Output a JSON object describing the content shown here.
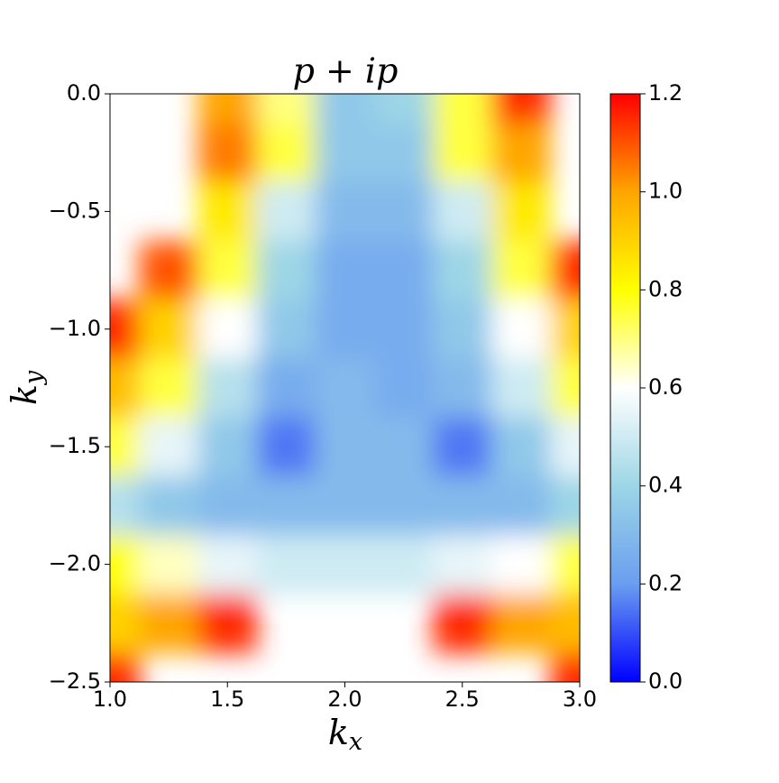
{
  "chart_data": {
    "type": "heatmap",
    "title": {
      "base": "p + ip"
    },
    "xlabel": {
      "base": "k",
      "sub": "x"
    },
    "ylabel": {
      "base": "k",
      "sub": "y"
    },
    "x": [
      1.0,
      1.25,
      1.5,
      1.75,
      2.0,
      2.25,
      2.5,
      2.75,
      3.0
    ],
    "y": [
      0,
      -0.25,
      -0.5,
      -0.75,
      -1.0,
      -1.25,
      -1.5,
      -1.75,
      -2.0,
      -2.25,
      -2.5
    ],
    "z": [
      [
        null,
        null,
        1.0,
        0.7,
        0.35,
        0.4,
        0.75,
        1.15,
        null
      ],
      [
        null,
        null,
        1.05,
        0.75,
        0.35,
        0.35,
        0.75,
        1.0,
        null
      ],
      [
        null,
        null,
        0.85,
        0.5,
        0.3,
        0.3,
        0.5,
        0.85,
        null
      ],
      [
        null,
        1.1,
        0.75,
        0.4,
        0.25,
        0.25,
        0.4,
        0.75,
        1.15
      ],
      [
        1.15,
        0.9,
        0.6,
        0.35,
        0.25,
        0.25,
        0.35,
        0.6,
        0.9
      ],
      [
        0.95,
        0.75,
        0.45,
        0.25,
        0.3,
        0.25,
        0.3,
        0.5,
        0.75
      ],
      [
        0.75,
        0.55,
        0.35,
        0.15,
        0.3,
        0.3,
        0.15,
        0.35,
        0.55
      ],
      [
        0.45,
        0.35,
        0.3,
        0.3,
        0.3,
        0.3,
        0.3,
        0.3,
        0.4
      ],
      [
        0.8,
        0.65,
        0.55,
        0.5,
        0.5,
        0.5,
        0.55,
        0.6,
        0.75
      ],
      [
        0.9,
        1.0,
        1.15,
        null,
        null,
        null,
        1.15,
        1.0,
        0.95
      ],
      [
        1.15,
        null,
        null,
        null,
        null,
        null,
        null,
        null,
        1.15
      ]
    ],
    "xlim": [
      1.0,
      3.0
    ],
    "ylim": [
      -2.5,
      0
    ],
    "xticks": [
      {
        "value": 1.0,
        "label": "1.0"
      },
      1.5,
      {
        "value": 2.0,
        "label": "2.0"
      },
      2.5,
      {
        "value": 3.0,
        "label": "3.0"
      }
    ],
    "yticks": [
      {
        "value": 0,
        "label": "0.0"
      },
      {
        "value": -0.5,
        "label": "−0.5"
      },
      {
        "value": -1.0,
        "label": "−1.0"
      },
      {
        "value": -1.5,
        "label": "−1.5"
      },
      {
        "value": -2.0,
        "label": "−2.0"
      },
      {
        "value": -2.5,
        "label": "−2.5"
      }
    ],
    "clim": [
      0,
      1.2
    ],
    "cticks": [
      {
        "value": 0,
        "label": "0.0"
      },
      0.2,
      0.4,
      0.6,
      0.8,
      {
        "value": 1.0,
        "label": "1.0"
      },
      1.2
    ],
    "colormap": [
      "#0000ff",
      "#6a9ef0",
      "#9dd6e6",
      "#ffffff",
      "#ffff00",
      "#ffa500",
      "#ff0000"
    ]
  }
}
